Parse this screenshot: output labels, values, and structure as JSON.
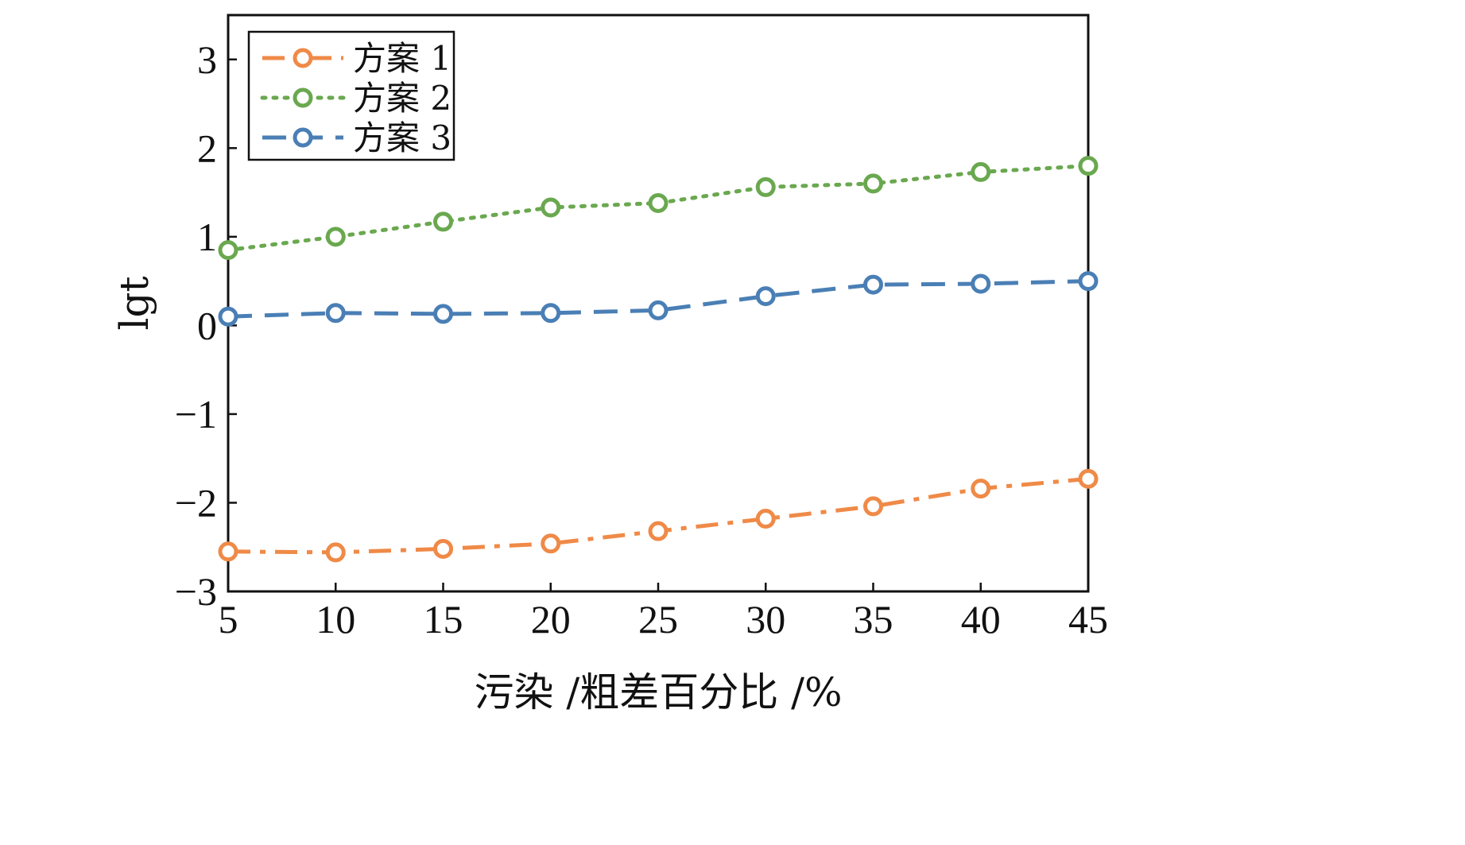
{
  "chart_data": {
    "type": "line",
    "xlabel": "污染 /粗差百分比 /%",
    "ylabel": "lgt",
    "xlim": [
      5,
      45
    ],
    "ylim": [
      -3,
      3.5
    ],
    "xticks": [
      5,
      10,
      15,
      20,
      25,
      30,
      35,
      40,
      45
    ],
    "yticks": [
      -3,
      -2,
      -1,
      0,
      1,
      2,
      3
    ],
    "ytick_labels": [
      "−3",
      "−2",
      "−1",
      "0",
      "1",
      "2",
      "3"
    ],
    "x": [
      5,
      10,
      15,
      20,
      25,
      30,
      35,
      40,
      45
    ],
    "grid": false,
    "legend_position": "top-left",
    "series": [
      {
        "name": "方案 1",
        "color": "#ef8a47",
        "line_style": "dashdot",
        "marker": "circle",
        "values": [
          -2.55,
          -2.56,
          -2.52,
          -2.46,
          -2.32,
          -2.18,
          -2.04,
          -1.84,
          -1.73
        ]
      },
      {
        "name": "方案 2",
        "color": "#6aa84f",
        "line_style": "dotted",
        "marker": "circle",
        "values": [
          0.85,
          1.0,
          1.17,
          1.33,
          1.38,
          1.56,
          1.6,
          1.73,
          1.8
        ]
      },
      {
        "name": "方案 3",
        "color": "#4a7fb5",
        "line_style": "dashed",
        "marker": "circle",
        "values": [
          0.1,
          0.14,
          0.13,
          0.14,
          0.17,
          0.33,
          0.46,
          0.47,
          0.5
        ]
      }
    ]
  }
}
